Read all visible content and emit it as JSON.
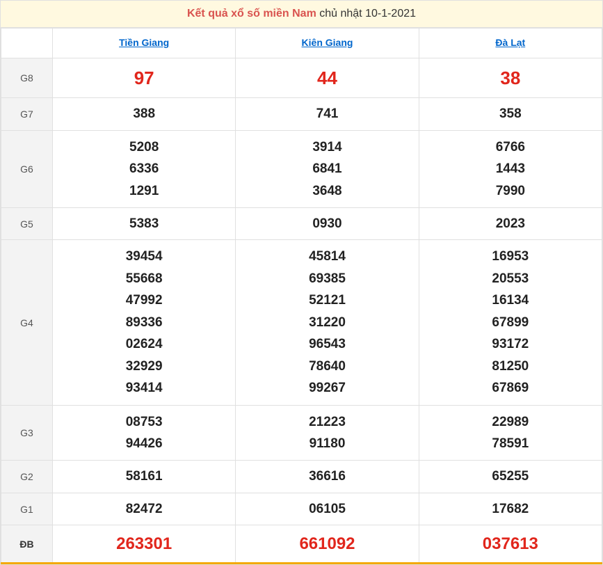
{
  "title": {
    "highlight": "Kết quả xổ số miền Nam",
    "rest": " chủ nhật 10-1-2021"
  },
  "provinces": [
    "Tiền Giang",
    "Kiên Giang",
    "Đà Lạt"
  ],
  "rows": [
    {
      "label": "G8",
      "class": "g8",
      "values": [
        [
          "97"
        ],
        [
          "44"
        ],
        [
          "38"
        ]
      ]
    },
    {
      "label": "G7",
      "class": "",
      "values": [
        [
          "388"
        ],
        [
          "741"
        ],
        [
          "358"
        ]
      ]
    },
    {
      "label": "G6",
      "class": "",
      "values": [
        [
          "5208",
          "6336",
          "1291"
        ],
        [
          "3914",
          "6841",
          "3648"
        ],
        [
          "6766",
          "1443",
          "7990"
        ]
      ]
    },
    {
      "label": "G5",
      "class": "",
      "values": [
        [
          "5383"
        ],
        [
          "0930"
        ],
        [
          "2023"
        ]
      ]
    },
    {
      "label": "G4",
      "class": "",
      "values": [
        [
          "39454",
          "55668",
          "47992",
          "89336",
          "02624",
          "32929",
          "93414"
        ],
        [
          "45814",
          "69385",
          "52121",
          "31220",
          "96543",
          "78640",
          "99267"
        ],
        [
          "16953",
          "20553",
          "16134",
          "67899",
          "93172",
          "81250",
          "67869"
        ]
      ]
    },
    {
      "label": "G3",
      "class": "",
      "values": [
        [
          "08753",
          "94426"
        ],
        [
          "21223",
          "91180"
        ],
        [
          "22989",
          "78591"
        ]
      ]
    },
    {
      "label": "G2",
      "class": "",
      "values": [
        [
          "58161"
        ],
        [
          "36616"
        ],
        [
          "65255"
        ]
      ]
    },
    {
      "label": "G1",
      "class": "",
      "values": [
        [
          "82472"
        ],
        [
          "06105"
        ],
        [
          "17682"
        ]
      ]
    },
    {
      "label": "ĐB",
      "class": "db",
      "values": [
        [
          "263301"
        ],
        [
          "661092"
        ],
        [
          "037613"
        ]
      ]
    }
  ],
  "colors": {
    "header_bg": "#fff9e0",
    "highlight_text": "#d9534f",
    "link": "#0066cc",
    "special_red": "#e1261c",
    "border": "#e0e0e0",
    "label_bg": "#f3f3f3",
    "bottom_accent": "#f4a800"
  }
}
